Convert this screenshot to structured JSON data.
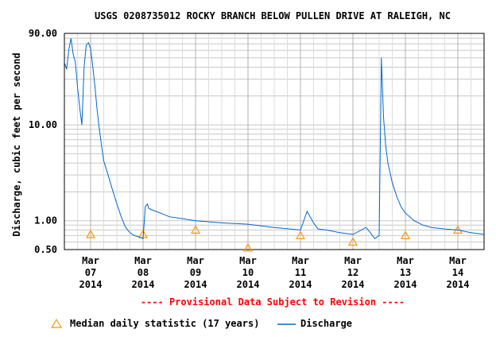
{
  "chart_data": {
    "type": "line",
    "title": "USGS 0208735012 ROCKY BRANCH BELOW PULLEN DRIVE AT RALEIGH, NC",
    "ylabel": "Discharge, cubic feet per second",
    "y_scale": "log",
    "ylim": [
      0.5,
      90
    ],
    "y_tick_labels": [
      "90.00",
      "10.00",
      "1.00",
      "0.50"
    ],
    "y_ticks": [
      90,
      10,
      1,
      0.5
    ],
    "x_tick_labels": [
      {
        "month": "Mar",
        "day": "07",
        "year": "2014"
      },
      {
        "month": "Mar",
        "day": "08",
        "year": "2014"
      },
      {
        "month": "Mar",
        "day": "09",
        "year": "2014"
      },
      {
        "month": "Mar",
        "day": "10",
        "year": "2014"
      },
      {
        "month": "Mar",
        "day": "11",
        "year": "2014"
      },
      {
        "month": "Mar",
        "day": "12",
        "year": "2014"
      },
      {
        "month": "Mar",
        "day": "13",
        "year": "2014"
      },
      {
        "month": "Mar",
        "day": "14",
        "year": "2014"
      }
    ],
    "x_dates": [
      "2014-03-07",
      "2014-03-08",
      "2014-03-09",
      "2014-03-10",
      "2014-03-11",
      "2014-03-12",
      "2014-03-13",
      "2014-03-14"
    ],
    "xlim": [
      "2014-03-06 12:00",
      "2014-03-14 12:00"
    ],
    "grid": true,
    "legend_position": "bottom",
    "series": [
      {
        "name": "Discharge",
        "color": "#0066cc",
        "x": [
          "2014-03-06 12:00",
          "2014-03-06 13:00",
          "2014-03-06 14:00",
          "2014-03-06 15:00",
          "2014-03-06 16:00",
          "2014-03-06 17:00",
          "2014-03-06 18:00",
          "2014-03-06 19:00",
          "2014-03-06 20:00",
          "2014-03-06 21:00",
          "2014-03-06 22:00",
          "2014-03-06 23:00",
          "2014-03-07 00:00",
          "2014-03-07 01:00",
          "2014-03-07 02:00",
          "2014-03-07 03:00",
          "2014-03-07 04:00",
          "2014-03-07 05:00",
          "2014-03-07 06:00",
          "2014-03-07 08:00",
          "2014-03-07 10:00",
          "2014-03-07 12:00",
          "2014-03-07 14:00",
          "2014-03-07 16:00",
          "2014-03-07 18:00",
          "2014-03-07 20:00",
          "2014-03-07 22:00",
          "2014-03-08 00:00",
          "2014-03-08 01:00",
          "2014-03-08 02:00",
          "2014-03-08 02:30",
          "2014-03-08 04:00",
          "2014-03-08 08:00",
          "2014-03-08 12:00",
          "2014-03-08 18:00",
          "2014-03-09 00:00",
          "2014-03-09 12:00",
          "2014-03-10 00:00",
          "2014-03-10 12:00",
          "2014-03-11 00:00",
          "2014-03-11 03:00",
          "2014-03-11 06:00",
          "2014-03-11 08:00",
          "2014-03-11 12:00",
          "2014-03-11 18:00",
          "2014-03-12 00:00",
          "2014-03-12 06:00",
          "2014-03-12 08:00",
          "2014-03-12 10:00",
          "2014-03-12 12:00",
          "2014-03-12 13:00",
          "2014-03-12 14:00",
          "2014-03-12 15:00",
          "2014-03-12 16:00",
          "2014-03-12 18:00",
          "2014-03-12 20:00",
          "2014-03-12 22:00",
          "2014-03-13 00:00",
          "2014-03-13 04:00",
          "2014-03-13 08:00",
          "2014-03-13 12:00",
          "2014-03-13 18:00",
          "2014-03-14 00:00",
          "2014-03-14 06:00",
          "2014-03-14 12:00"
        ],
        "y": [
          45,
          38,
          60,
          80,
          55,
          45,
          25,
          15,
          10,
          40,
          68,
          72,
          62,
          40,
          25,
          14,
          9,
          6,
          4.2,
          3.0,
          2.1,
          1.5,
          1.1,
          0.85,
          0.75,
          0.7,
          0.68,
          0.65,
          1.4,
          1.5,
          1.35,
          1.3,
          1.2,
          1.1,
          1.05,
          1.0,
          0.95,
          0.92,
          0.85,
          0.8,
          1.25,
          0.95,
          0.82,
          0.8,
          0.75,
          0.72,
          0.85,
          0.75,
          0.65,
          0.7,
          50,
          12,
          6,
          4,
          2.5,
          1.8,
          1.4,
          1.2,
          1.0,
          0.9,
          0.85,
          0.82,
          0.8,
          0.75,
          0.72
        ]
      }
    ],
    "median_series": {
      "name": "Median daily statistic (17 years)",
      "color": "#ff9900",
      "x": [
        "2014-03-07",
        "2014-03-08",
        "2014-03-09",
        "2014-03-10",
        "2014-03-11",
        "2014-03-12",
        "2014-03-13",
        "2014-03-14"
      ],
      "y": [
        0.72,
        0.72,
        0.8,
        0.52,
        0.7,
        0.6,
        0.7,
        0.8
      ]
    },
    "annotation": "---- Provisional Data Subject to Revision ----"
  },
  "legend": {
    "median_label": "Median daily statistic (17 years)",
    "discharge_label": "Discharge"
  }
}
